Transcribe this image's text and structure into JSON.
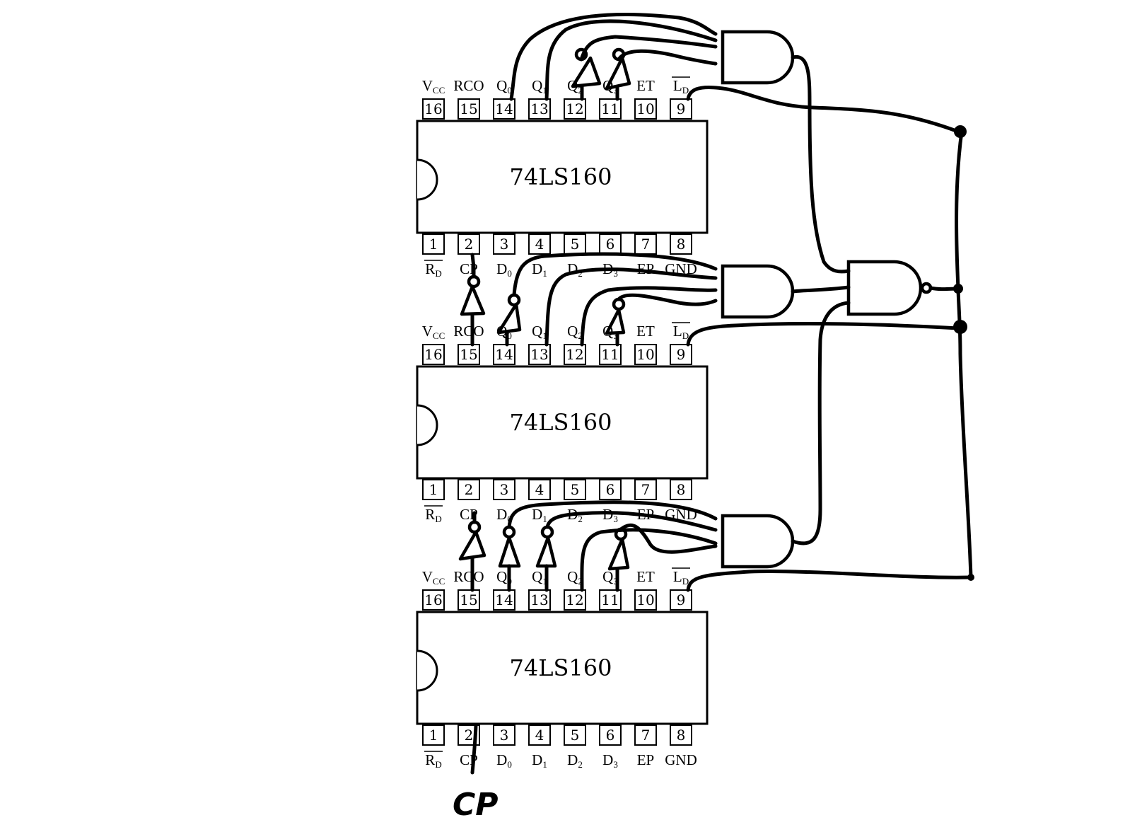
{
  "chips": [
    {
      "name": "74LS160"
    },
    {
      "name": "74LS160"
    },
    {
      "name": "74LS160"
    }
  ],
  "top_pins": [
    {
      "num": "16",
      "main": "V",
      "sub": "CC",
      "bar": false
    },
    {
      "num": "15",
      "main": "RCO",
      "sub": "",
      "bar": false
    },
    {
      "num": "14",
      "main": "Q",
      "sub": "0",
      "bar": false
    },
    {
      "num": "13",
      "main": "Q",
      "sub": "1",
      "bar": false
    },
    {
      "num": "12",
      "main": "Q",
      "sub": "2",
      "bar": false
    },
    {
      "num": "11",
      "main": "Q",
      "sub": "3",
      "bar": false
    },
    {
      "num": "10",
      "main": "ET",
      "sub": "",
      "bar": false
    },
    {
      "num": "9",
      "main": "L",
      "sub": "D",
      "bar": true
    }
  ],
  "bottom_pins": [
    {
      "num": "1",
      "main": "R",
      "sub": "D",
      "bar": true
    },
    {
      "num": "2",
      "main": "CP",
      "sub": "",
      "bar": false
    },
    {
      "num": "3",
      "main": "D",
      "sub": "0",
      "bar": false
    },
    {
      "num": "4",
      "main": "D",
      "sub": "1",
      "bar": false
    },
    {
      "num": "5",
      "main": "D",
      "sub": "2",
      "bar": false
    },
    {
      "num": "6",
      "main": "D",
      "sub": "3",
      "bar": false
    },
    {
      "num": "7",
      "main": "EP",
      "sub": "",
      "bar": false
    },
    {
      "num": "8",
      "main": "GND",
      "sub": "",
      "bar": false
    }
  ],
  "clock_label": "CP",
  "colors": {
    "ink": "#000000",
    "paper": "#ffffff"
  }
}
